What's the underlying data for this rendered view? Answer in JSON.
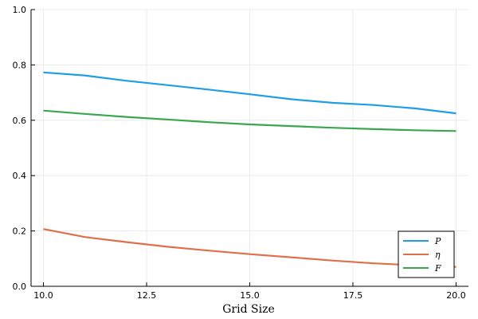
{
  "chart_data": {
    "type": "line",
    "xlabel": "Grid Size",
    "ylabel": "",
    "title": "",
    "xlim": [
      9.7,
      20.3
    ],
    "ylim": [
      0.0,
      1.0
    ],
    "xticks": [
      10.0,
      12.5,
      15.0,
      17.5,
      20.0
    ],
    "xtick_labels": [
      "10.0",
      "12.5",
      "15.0",
      "17.5",
      "20.0"
    ],
    "yticks": [
      0.0,
      0.2,
      0.4,
      0.6,
      0.8,
      1.0
    ],
    "ytick_labels": [
      "0.0",
      "0.2",
      "0.4",
      "0.6",
      "0.8",
      "1.0"
    ],
    "grid": true,
    "legend_position": "bottom-right",
    "x": [
      10,
      11,
      12,
      13,
      14,
      15,
      16,
      17,
      18,
      19,
      20
    ],
    "series": [
      {
        "name": "P",
        "color": "#1f9ee6",
        "values": [
          0.773,
          0.762,
          0.743,
          0.727,
          0.711,
          0.694,
          0.676,
          0.663,
          0.655,
          0.643,
          0.625
        ]
      },
      {
        "name": "η",
        "color": "#e1704a",
        "values": [
          0.207,
          0.178,
          0.16,
          0.143,
          0.129,
          0.116,
          0.105,
          0.093,
          0.083,
          0.076,
          0.07
        ]
      },
      {
        "name": "F",
        "color": "#3aa64f",
        "values": [
          0.635,
          0.623,
          0.612,
          0.603,
          0.593,
          0.585,
          0.579,
          0.573,
          0.568,
          0.564,
          0.561
        ]
      }
    ]
  }
}
